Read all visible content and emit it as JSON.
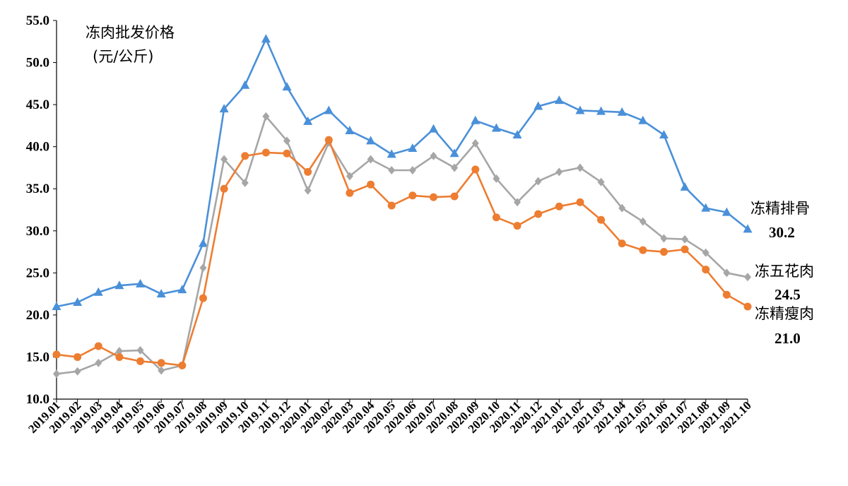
{
  "chart_data": {
    "type": "line",
    "title_lines": [
      "冻肉批发价格",
      "(元/公斤)"
    ],
    "ylim": [
      10,
      55
    ],
    "yticks": [
      "10.0",
      "15.0",
      "20.0",
      "25.0",
      "30.0",
      "35.0",
      "40.0",
      "45.0",
      "50.0",
      "55.0"
    ],
    "grid": false,
    "categories": [
      "2019.01",
      "2019.02",
      "2019.03",
      "2019.04",
      "2019.05",
      "2019.06",
      "2019.07",
      "2019.08",
      "2019.09",
      "2019.10",
      "2019.11",
      "2019.12",
      "2020.01",
      "2020.02",
      "2020.03",
      "2020.04",
      "2020.05",
      "2020.06",
      "2020.07",
      "2020.08",
      "2020.09",
      "2020.10",
      "2020.11",
      "2020.12",
      "2021.01",
      "2021.02",
      "2021.03",
      "2021.04",
      "2021.05",
      "2021.06",
      "2021.07",
      "2021.08",
      "2021.09",
      "2021.10"
    ],
    "series": [
      {
        "name": "冻精排骨",
        "color": "#4a90d9",
        "marker": "triangle",
        "end_value": "30.2",
        "values": [
          21.0,
          21.5,
          22.7,
          23.5,
          23.7,
          22.5,
          23.0,
          28.5,
          44.5,
          47.3,
          52.8,
          47.1,
          43.0,
          44.3,
          41.9,
          40.7,
          39.1,
          39.8,
          42.1,
          39.2,
          43.1,
          42.2,
          41.4,
          44.8,
          45.5,
          44.3,
          44.2,
          44.1,
          43.1,
          41.4,
          35.2,
          32.7,
          32.2,
          30.2
        ]
      },
      {
        "name": "冻五花肉",
        "color": "#a6a6a6",
        "marker": "diamond",
        "end_value": "24.5",
        "values": [
          13.0,
          13.3,
          14.3,
          15.7,
          15.8,
          13.4,
          14.0,
          25.6,
          38.5,
          35.7,
          43.6,
          40.7,
          34.8,
          40.5,
          36.5,
          38.5,
          37.2,
          37.2,
          38.9,
          37.5,
          40.4,
          36.2,
          33.4,
          35.9,
          37.0,
          37.5,
          35.8,
          32.7,
          31.1,
          29.1,
          29.0,
          27.4,
          25.0,
          24.5
        ]
      },
      {
        "name": "冻精瘦肉",
        "color": "#ed7d31",
        "marker": "circle",
        "end_value": "21.0",
        "values": [
          15.3,
          15.0,
          16.3,
          15.0,
          14.5,
          14.3,
          14.0,
          22.0,
          35.0,
          38.9,
          39.3,
          39.2,
          37.0,
          40.8,
          34.5,
          35.5,
          33.0,
          34.2,
          34.0,
          34.1,
          37.3,
          31.6,
          30.6,
          32.0,
          32.9,
          33.4,
          31.3,
          28.5,
          27.7,
          27.5,
          27.8,
          25.4,
          22.4,
          21.0
        ]
      }
    ]
  }
}
